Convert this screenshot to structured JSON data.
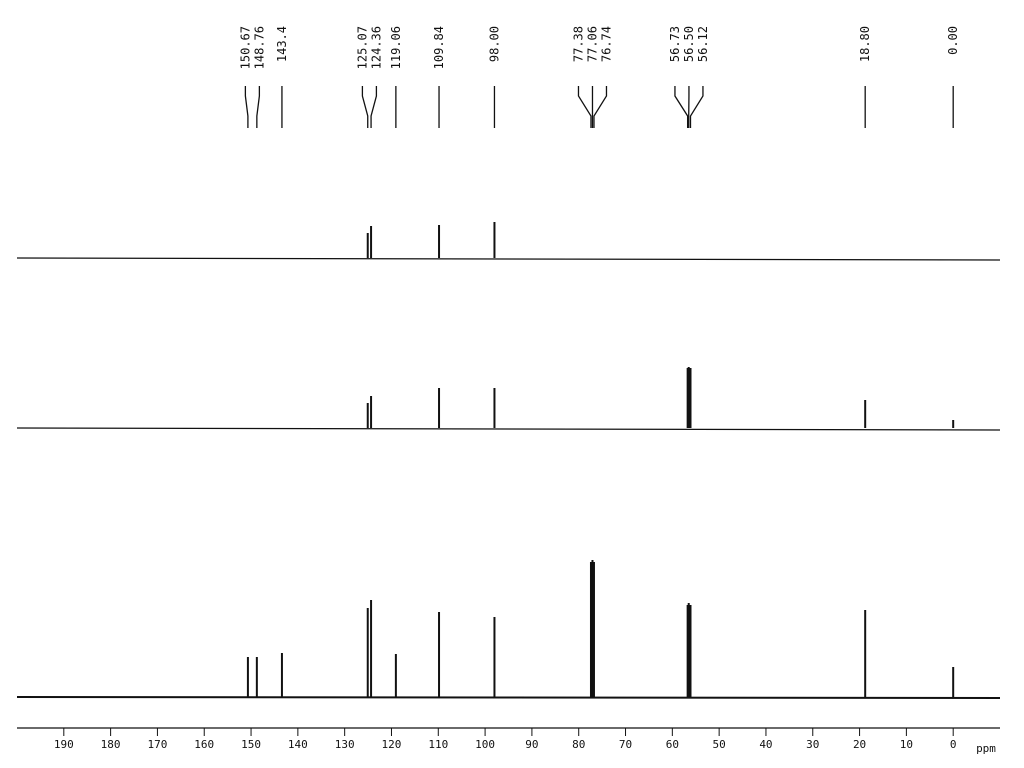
{
  "chart_data": {
    "type": "spectrum",
    "xlabel": "ppm",
    "xlim": [
      200,
      -10
    ],
    "xticks": [
      190,
      180,
      170,
      160,
      150,
      140,
      130,
      120,
      110,
      100,
      90,
      80,
      70,
      60,
      50,
      40,
      30,
      20,
      10,
      0
    ],
    "ylim": [
      0,
      150
    ],
    "peak_labels": [
      150.67,
      148.76,
      143.4,
      125.07,
      124.36,
      119.06,
      109.84,
      {
        "value": 98,
        "label": "98.00"
      },
      77.38,
      77.06,
      76.74,
      56.73,
      {
        "value": 56.5,
        "label": "56.50"
      },
      56.12,
      {
        "value": 18.8,
        "label": "18.80"
      },
      {
        "value": 0,
        "label": "0.00"
      }
    ],
    "series": [
      {
        "color": "#111111",
        "x": [
          125.07,
          124.36,
          109.84,
          98.0
        ],
        "values": [
          25,
          32,
          33,
          36
        ]
      },
      {
        "color": "#111111",
        "x": [
          125.07,
          124.36,
          109.84,
          98.0,
          56.73,
          56.5,
          56.12,
          18.8,
          0.0
        ],
        "values": [
          25,
          32,
          40,
          40,
          60,
          61,
          60,
          28,
          8
        ]
      },
      {
        "color": "#111111",
        "x": [
          150.67,
          148.76,
          143.4,
          125.07,
          124.36,
          119.06,
          109.84,
          98.0,
          77.38,
          77.06,
          76.74,
          56.73,
          56.5,
          56.12,
          18.8,
          0.0
        ],
        "values": [
          40,
          40,
          44,
          89,
          97,
          43,
          85,
          80,
          135,
          137,
          135,
          92,
          94,
          92,
          87,
          30
        ]
      }
    ]
  }
}
